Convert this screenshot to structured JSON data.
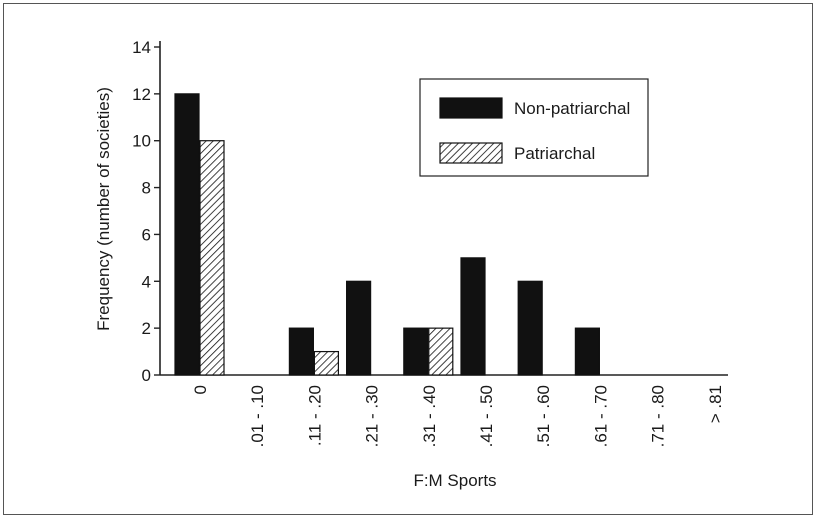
{
  "chart_data": {
    "type": "bar",
    "title": "",
    "xlabel": "F:M Sports",
    "ylabel": "Frequency (number of societies)",
    "ylim": [
      0,
      14
    ],
    "yticks": [
      "0",
      "2",
      "4",
      "6",
      "8",
      "10",
      "12",
      "14"
    ],
    "categories": [
      "0",
      ".01 - .10",
      ".11 - .20",
      ".21 - .30",
      ".31 - .40",
      ".41 - .50",
      ".51 - .60",
      ".61 - .70",
      ".71 - .80",
      "> .81"
    ],
    "series": [
      {
        "name": "Non-patriarchal",
        "values": [
          12,
          0,
          2,
          4,
          2,
          5,
          4,
          2,
          0,
          0
        ],
        "fill": "solid"
      },
      {
        "name": "Patriarchal",
        "values": [
          10,
          0,
          1,
          0,
          2,
          0,
          0,
          0,
          0,
          0
        ],
        "fill": "hatched"
      }
    ],
    "legend_position": "top-right",
    "grid": false,
    "colors": {
      "bar": "#111111",
      "axis": "#222222"
    }
  }
}
